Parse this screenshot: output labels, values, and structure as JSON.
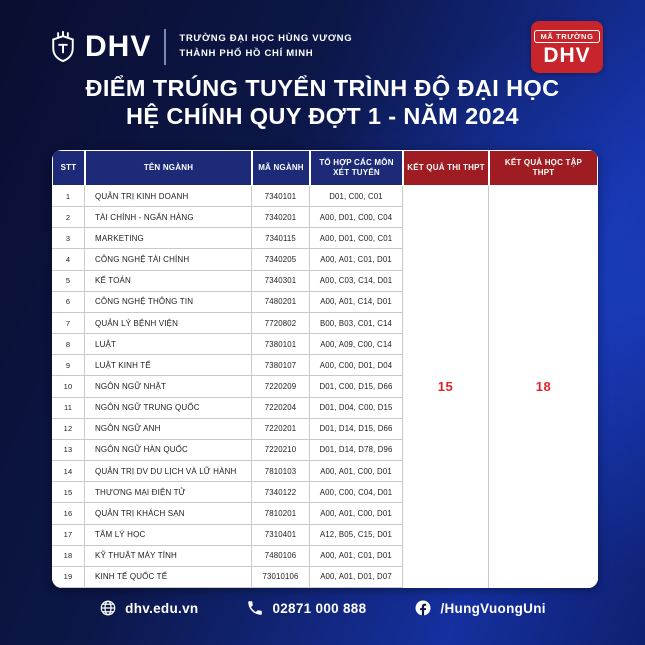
{
  "brand": {
    "name": "DHV",
    "org_line1": "TRƯỜNG ĐẠI HỌC HÙNG VƯƠNG",
    "org_line2": "THÀNH PHỐ HỒ CHÍ MINH",
    "badge_label": "MÃ TRƯỜNG",
    "badge_code": "DHV"
  },
  "title": {
    "line1": "ĐIỂM TRÚNG TUYỂN TRÌNH ĐỘ ĐẠI HỌC",
    "line2": "HỆ CHÍNH QUY ĐỢT 1 - NĂM 2024"
  },
  "table": {
    "columns": [
      "STT",
      "TÊN NGÀNH",
      "MÃ NGÀNH",
      "TỔ HỢP CÁC MÔN XÉT TUYỂN",
      "KẾT QUẢ THI THPT",
      "KẾT QUẢ HỌC TẬP THPT"
    ],
    "rows": [
      [
        "1",
        "QUẢN TRỊ KINH DOANH",
        "7340101",
        "D01, C00, C01"
      ],
      [
        "2",
        "TÀI CHÍNH - NGÂN HÀNG",
        "7340201",
        "A00, D01, C00, C04"
      ],
      [
        "3",
        "MARKETING",
        "7340115",
        "A00, D01, C00, C01"
      ],
      [
        "4",
        "CÔNG NGHỆ TÀI CHÍNH",
        "7340205",
        "A00, A01, C01, D01"
      ],
      [
        "5",
        "KẾ TOÁN",
        "7340301",
        "A00, C03, C14, D01"
      ],
      [
        "6",
        "CÔNG NGHỆ THÔNG TIN",
        "7480201",
        "A00, A01, C14, D01"
      ],
      [
        "7",
        "QUẢN LÝ BỆNH VIỆN",
        "7720802",
        "B00, B03, C01, C14"
      ],
      [
        "8",
        "LUẬT",
        "7380101",
        "A00, A09, C00, C14"
      ],
      [
        "9",
        "LUẬT KINH TẾ",
        "7380107",
        "A00, C00, D01, D04"
      ],
      [
        "10",
        "NGÔN NGỮ NHẬT",
        "7220209",
        "D01, C00, D15, D66"
      ],
      [
        "11",
        "NGÔN NGỮ TRUNG QUỐC",
        "7220204",
        "D01, D04, C00, D15"
      ],
      [
        "12",
        "NGÔN NGỮ ANH",
        "7220201",
        "D01, D14, D15, D66"
      ],
      [
        "13",
        "NGÔN NGỮ HÀN QUỐC",
        "7220210",
        "D01, D14, D78, D96"
      ],
      [
        "14",
        "QUẢN TRỊ DV DU LỊCH VÀ LỮ HÀNH",
        "7810103",
        "A00, A01, C00, D01"
      ],
      [
        "15",
        "THƯƠNG MẠI ĐIỆN TỬ",
        "7340122",
        "A00, C00, C04, D01"
      ],
      [
        "16",
        "QUẢN TRỊ KHÁCH SẠN",
        "7810201",
        "A00, A01, C00, D01"
      ],
      [
        "17",
        "TÂM LÝ HỌC",
        "7310401",
        "A12, B05, C15, D01"
      ],
      [
        "18",
        "KỸ THUẬT MÁY TÍNH",
        "7480106",
        "A00, A01, C01, D01"
      ],
      [
        "19",
        "KINH TẾ QUỐC TẾ",
        "73010106",
        "A00, A01, D01, D07"
      ]
    ],
    "scores": {
      "thi_thpt": "15",
      "hoc_tap_thpt": "18"
    }
  },
  "footer": {
    "website": "dhv.edu.vn",
    "phone": "02871 000 888",
    "facebook": "/HungVuongUni"
  },
  "colors": {
    "header_blue": "#1c2a77",
    "header_red": "#9e1c22",
    "score_red": "#e2232a",
    "badge_red": "#c7242c",
    "background_navy": "#0c1748",
    "background_bright_blue": "#15309f"
  }
}
